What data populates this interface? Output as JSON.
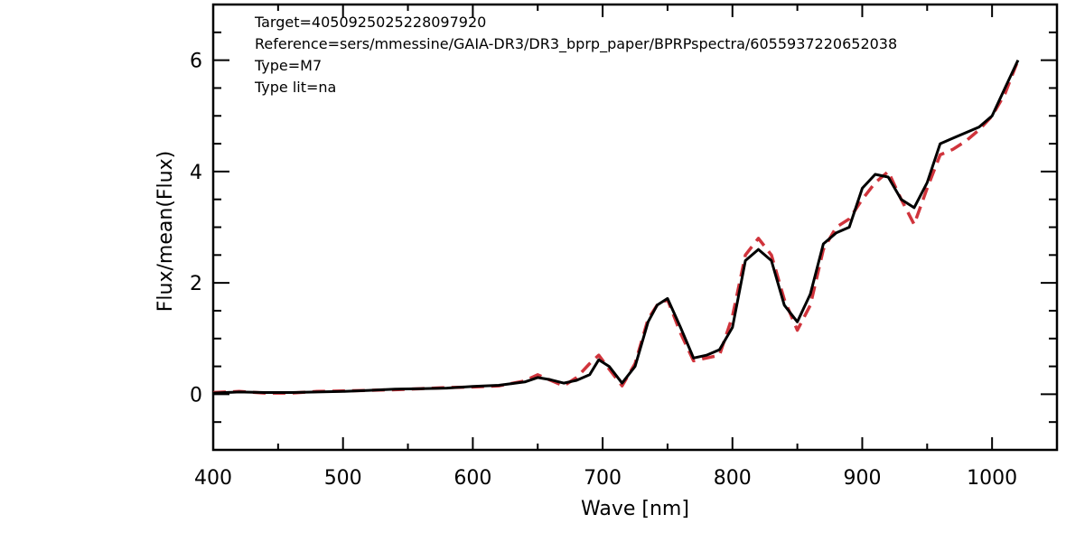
{
  "chart_data": {
    "type": "line",
    "xlabel": "Wave [nm]",
    "ylabel": "Flux/mean(Flux)",
    "xlim": [
      400,
      1050
    ],
    "ylim": [
      -1,
      7
    ],
    "x_ticks": [
      "400",
      "500",
      "600",
      "700",
      "800",
      "900",
      "1000"
    ],
    "y_ticks": [
      "0",
      "2",
      "4",
      "6"
    ],
    "annotations": [
      "Target=4050925025228097920",
      "Reference=sers/mmessine/GAIA-DR3/DR3_bprp_paper/BPRPspectra/6055937220652038",
      "Type=M7",
      "Type lit=na"
    ],
    "colors": {
      "observed": "#000000",
      "template": "#d0343c"
    },
    "series": [
      {
        "style": "solid",
        "x": [
          400,
          420,
          440,
          460,
          480,
          500,
          520,
          540,
          560,
          580,
          600,
          620,
          640,
          650,
          660,
          670,
          680,
          690,
          697,
          705,
          715,
          725,
          735,
          742,
          750,
          760,
          770,
          780,
          790,
          800,
          810,
          820,
          830,
          840,
          850,
          860,
          870,
          880,
          890,
          900,
          910,
          920,
          930,
          940,
          950,
          960,
          970,
          980,
          990,
          1000,
          1010,
          1020
        ],
        "values": [
          0.02,
          0.04,
          0.03,
          0.03,
          0.04,
          0.05,
          0.07,
          0.09,
          0.1,
          0.11,
          0.14,
          0.16,
          0.22,
          0.3,
          0.26,
          0.2,
          0.25,
          0.35,
          0.62,
          0.5,
          0.2,
          0.5,
          1.3,
          1.6,
          1.72,
          1.2,
          0.65,
          0.7,
          0.8,
          1.2,
          2.4,
          2.6,
          2.4,
          1.6,
          1.3,
          1.8,
          2.7,
          2.9,
          3.0,
          3.7,
          3.95,
          3.9,
          3.5,
          3.35,
          3.8,
          4.5,
          4.6,
          4.7,
          4.8,
          5.0,
          5.5,
          6.0
        ]
      },
      {
        "style": "dashed",
        "x": [
          400,
          420,
          440,
          460,
          480,
          500,
          520,
          540,
          560,
          580,
          600,
          620,
          640,
          650,
          660,
          670,
          680,
          690,
          697,
          705,
          715,
          725,
          735,
          742,
          750,
          760,
          770,
          780,
          790,
          800,
          810,
          820,
          830,
          840,
          850,
          860,
          870,
          880,
          890,
          900,
          910,
          920,
          930,
          940,
          950,
          960,
          970,
          980,
          990,
          1000,
          1010,
          1020
        ],
        "values": [
          0.03,
          0.05,
          0.02,
          0.02,
          0.05,
          0.06,
          0.07,
          0.08,
          0.1,
          0.12,
          0.13,
          0.15,
          0.24,
          0.35,
          0.25,
          0.15,
          0.3,
          0.55,
          0.7,
          0.45,
          0.15,
          0.55,
          1.35,
          1.6,
          1.7,
          1.1,
          0.6,
          0.65,
          0.7,
          1.4,
          2.5,
          2.8,
          2.5,
          1.7,
          1.15,
          1.6,
          2.6,
          3.0,
          3.15,
          3.5,
          3.8,
          4.0,
          3.5,
          3.05,
          3.7,
          4.3,
          4.4,
          4.55,
          4.75,
          5.0,
          5.4,
          6.0
        ]
      }
    ]
  }
}
